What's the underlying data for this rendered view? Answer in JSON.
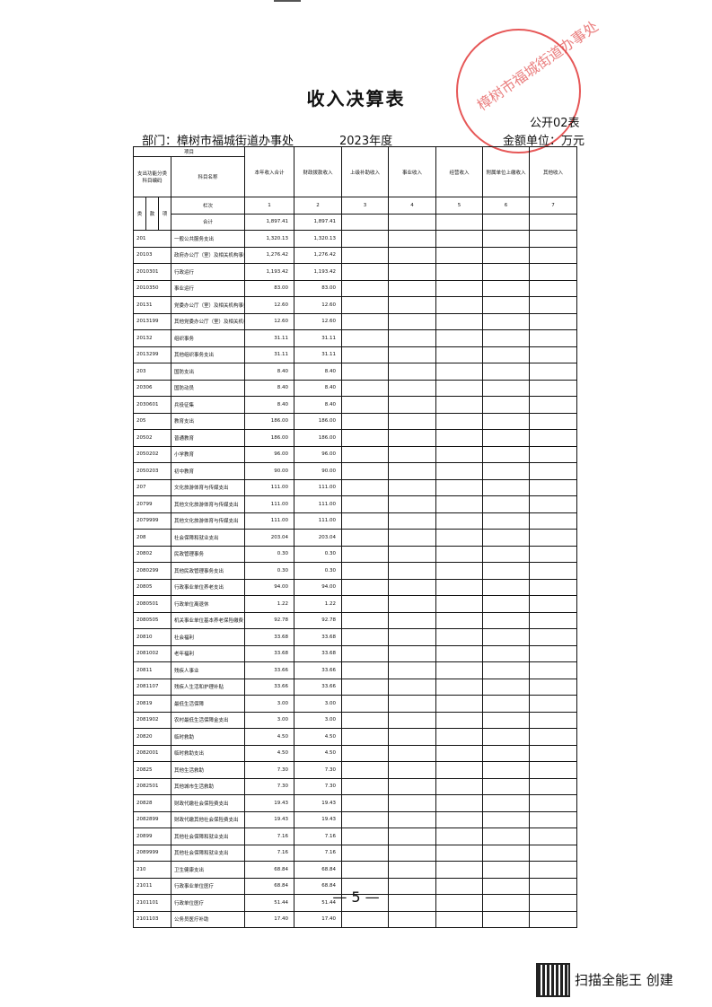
{
  "title": "收入决算表",
  "form_no": "公开02表",
  "department": "部门：樟树市福城街道办事处",
  "year": "2023年度",
  "unit": "金额单位：万元",
  "stamp_text": "樟树市福城街道办事处",
  "header": {
    "project": "项目",
    "code": "支出功能分类科目编码",
    "name": "科目名称",
    "columns": [
      "本年收入合计",
      "财政拨款收入",
      "上级补助收入",
      "事业收入",
      "经营收入",
      "附属单位上缴收入",
      "其他收入"
    ],
    "sub": [
      "类",
      "款",
      "项"
    ],
    "row_index_label": "栏次",
    "row_index": [
      "1",
      "2",
      "3",
      "4",
      "5",
      "6",
      "7"
    ],
    "total_label": "合计",
    "total": [
      "1,897.41",
      "1,897.41",
      "",
      "",
      "",
      "",
      ""
    ]
  },
  "rows": [
    {
      "code": "201",
      "name": "一般公共服务支出",
      "v": [
        "1,320.13",
        "1,320.13"
      ]
    },
    {
      "code": "20103",
      "name": "政府办公厅（室）及相关机构事务",
      "v": [
        "1,276.42",
        "1,276.42"
      ]
    },
    {
      "code": "2010301",
      "name": "行政运行",
      "v": [
        "1,193.42",
        "1,193.42"
      ]
    },
    {
      "code": "2010350",
      "name": "事业运行",
      "v": [
        "83.00",
        "83.00"
      ]
    },
    {
      "code": "20131",
      "name": "党委办公厅（室）及相关机构事务",
      "v": [
        "12.60",
        "12.60"
      ]
    },
    {
      "code": "2013199",
      "name": "其他党委办公厅（室）及相关机构",
      "v": [
        "12.60",
        "12.60"
      ]
    },
    {
      "code": "20132",
      "name": "组织事务",
      "v": [
        "31.11",
        "31.11"
      ]
    },
    {
      "code": "2013299",
      "name": "其他组织事务支出",
      "v": [
        "31.11",
        "31.11"
      ]
    },
    {
      "code": "203",
      "name": "国防支出",
      "v": [
        "8.40",
        "8.40"
      ]
    },
    {
      "code": "20306",
      "name": "国防动员",
      "v": [
        "8.40",
        "8.40"
      ]
    },
    {
      "code": "2030601",
      "name": "兵役征集",
      "v": [
        "8.40",
        "8.40"
      ]
    },
    {
      "code": "205",
      "name": "教育支出",
      "v": [
        "186.00",
        "186.00"
      ]
    },
    {
      "code": "20502",
      "name": "普通教育",
      "v": [
        "186.00",
        "186.00"
      ]
    },
    {
      "code": "2050202",
      "name": "小学教育",
      "v": [
        "96.00",
        "96.00"
      ]
    },
    {
      "code": "2050203",
      "name": "初中教育",
      "v": [
        "90.00",
        "90.00"
      ]
    },
    {
      "code": "207",
      "name": "文化旅游体育与传媒支出",
      "v": [
        "111.00",
        "111.00"
      ]
    },
    {
      "code": "20799",
      "name": "其他文化旅游体育与传媒支出",
      "v": [
        "111.00",
        "111.00"
      ]
    },
    {
      "code": "2079999",
      "name": "其他文化旅游体育与传媒支出",
      "v": [
        "111.00",
        "111.00"
      ]
    },
    {
      "code": "208",
      "name": "社会保障和就业支出",
      "v": [
        "203.04",
        "203.04"
      ]
    },
    {
      "code": "20802",
      "name": "民政管理事务",
      "v": [
        "0.30",
        "0.30"
      ]
    },
    {
      "code": "2080299",
      "name": "其他民政管理事务支出",
      "v": [
        "0.30",
        "0.30"
      ]
    },
    {
      "code": "20805",
      "name": "行政事业单位养老支出",
      "v": [
        "94.00",
        "94.00"
      ]
    },
    {
      "code": "2080501",
      "name": "行政单位离退休",
      "v": [
        "1.22",
        "1.22"
      ]
    },
    {
      "code": "2080505",
      "name": "机关事业单位基本养老保险缴费",
      "v": [
        "92.78",
        "92.78"
      ]
    },
    {
      "code": "20810",
      "name": "社会福利",
      "v": [
        "33.68",
        "33.68"
      ]
    },
    {
      "code": "2081002",
      "name": "老年福利",
      "v": [
        "33.68",
        "33.68"
      ]
    },
    {
      "code": "20811",
      "name": "残疾人事业",
      "v": [
        "33.66",
        "33.66"
      ]
    },
    {
      "code": "2081107",
      "name": "残疾人生活和护理补贴",
      "v": [
        "33.66",
        "33.66"
      ]
    },
    {
      "code": "20819",
      "name": "最低生活保障",
      "v": [
        "3.00",
        "3.00"
      ]
    },
    {
      "code": "2081902",
      "name": "农村最低生活保障金支出",
      "v": [
        "3.00",
        "3.00"
      ]
    },
    {
      "code": "20820",
      "name": "临时救助",
      "v": [
        "4.50",
        "4.50"
      ]
    },
    {
      "code": "2082001",
      "name": "临时救助支出",
      "v": [
        "4.50",
        "4.50"
      ]
    },
    {
      "code": "20825",
      "name": "其他生活救助",
      "v": [
        "7.30",
        "7.30"
      ]
    },
    {
      "code": "2082501",
      "name": "其他城市生活救助",
      "v": [
        "7.30",
        "7.30"
      ]
    },
    {
      "code": "20828",
      "name": "财政代缴社会保险费支出",
      "v": [
        "19.43",
        "19.43"
      ]
    },
    {
      "code": "2082899",
      "name": "财政代缴其他社会保险费支出",
      "v": [
        "19.43",
        "19.43"
      ]
    },
    {
      "code": "20899",
      "name": "其他社会保障和就业支出",
      "v": [
        "7.16",
        "7.16"
      ]
    },
    {
      "code": "2089999",
      "name": "其他社会保障和就业支出",
      "v": [
        "7.16",
        "7.16"
      ]
    },
    {
      "code": "210",
      "name": "卫生健康支出",
      "v": [
        "68.84",
        "68.84"
      ]
    },
    {
      "code": "21011",
      "name": "行政事业单位医疗",
      "v": [
        "68.84",
        "68.84"
      ]
    },
    {
      "code": "2101101",
      "name": "行政单位医疗",
      "v": [
        "51.44",
        "51.44"
      ]
    },
    {
      "code": "2101103",
      "name": "公务员医疗补助",
      "v": [
        "17.40",
        "17.40"
      ]
    }
  ],
  "page_number": "— 5 —",
  "watermark": "扫描全能王 创建"
}
